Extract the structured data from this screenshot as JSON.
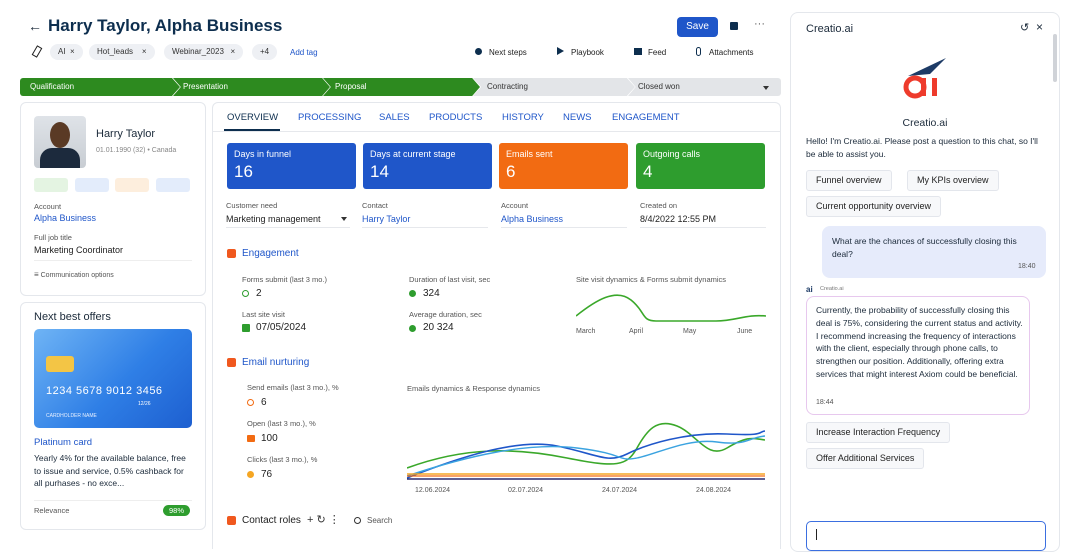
{
  "header": {
    "title": "Harry Taylor, Alpha Business",
    "save": "Save",
    "tags": [
      "AI",
      "Hot_leads",
      "Webinar_2023"
    ],
    "more_tags": "+4",
    "add_tag": "Add tag",
    "actions": [
      "Next steps",
      "Playbook",
      "Feed",
      "Attachments"
    ]
  },
  "stages": [
    "Qualification",
    "Presentation",
    "Proposal",
    "Contracting",
    "Closed won"
  ],
  "profile": {
    "name": "Harry Taylor",
    "details": "01.01.1990 (32) • Canada",
    "account_label": "Account",
    "account": "Alpha Business",
    "job_label": "Full job title",
    "job": "Marketing Coordinator",
    "communication": "Communication options"
  },
  "offers": {
    "title": "Next best offers",
    "card_number": "1234 5678 9012 3456",
    "card_expiry": "12/26",
    "card_holder": "CARDHOLDER NAME",
    "name": "Platinum card",
    "description": "Yearly 4% for the available balance, free to issue and service, 0.5% cashback for all purhases - no exce...",
    "relevance_label": "Relevance",
    "relevance": "98%"
  },
  "tabs": [
    "OVERVIEW",
    "PROCESSING",
    "SALES",
    "PRODUCTS",
    "HISTORY",
    "NEWS",
    "ENGAGEMENT"
  ],
  "kpis": [
    {
      "label": "Days in funnel",
      "value": 16
    },
    {
      "label": "Days at current stage",
      "value": 14
    },
    {
      "label": "Emails sent",
      "value": 6
    },
    {
      "label": "Outgoing calls",
      "value": 4
    }
  ],
  "fields": [
    {
      "label": "Customer need",
      "value": "Marketing management"
    },
    {
      "label": "Contact",
      "value": "Harry Taylor"
    },
    {
      "label": "Account",
      "value": "Alpha Business"
    },
    {
      "label": "Created on",
      "value": "8/4/2022 12:55 PM"
    }
  ],
  "engagement": {
    "title": "Engagement",
    "metrics": [
      {
        "label": "Forms submit (last 3 mo.)",
        "value": 2
      },
      {
        "label": "Last site visit",
        "value": "07/05/2024"
      },
      {
        "label": "Duration of last visit, sec",
        "value": 324
      },
      {
        "label": "Average duration, sec",
        "value": "20 324"
      }
    ],
    "chart_title": "Site visit dynamics & Forms submit dynamics",
    "chart_x": [
      "March",
      "April",
      "May",
      "June"
    ]
  },
  "email_nurturing": {
    "title": "Email nurturing",
    "metrics": [
      {
        "label": "Send emails (last 3 mo.), %",
        "value": 6
      },
      {
        "label": "Open (last 3 mo.), %",
        "value": 100
      },
      {
        "label": "Clicks (last 3 mo.), %",
        "value": 76
      }
    ],
    "chart_title": "Emails dynamics & Response dynamics",
    "chart_x": [
      "12.06.2024",
      "02.07.2024",
      "24.07.2024",
      "24.08.2024"
    ]
  },
  "contact_roles": {
    "title": "Contact roles",
    "search": "Search"
  },
  "assistant": {
    "title": "Creatio.ai",
    "name": "Creatio.ai",
    "intro": "Hello! I'm Creatio.ai. Please post a question to this chat, so I'll be able to assist you.",
    "quick_actions": [
      "Funnel overview",
      "My KPIs overview",
      "Current opportunity overview"
    ],
    "user_message": "What are the chances of successfully closing this deal?",
    "user_time": "18:40",
    "bot_label": "Creatio.ai",
    "bot_message": "Currently, the probability of successfully closing this deal is 75%, considering the current status and activity. I recommend increasing the frequency of interactions with the client, especially through phone calls, to strengthen our position. Additionally, offering extra services that might interest Axiom could be beneficial.",
    "bot_time": "18:44",
    "suggestions": [
      "Increase Interaction Frequency",
      "Offer Additional Services"
    ]
  }
}
